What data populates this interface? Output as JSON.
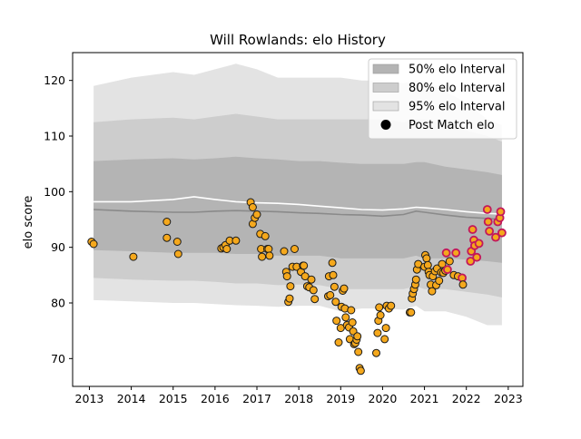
{
  "chart_data": {
    "type": "line",
    "title": "Will Rowlands: elo History",
    "xlabel": "",
    "ylabel": "elo score",
    "xlim": [
      2012.6,
      2023.35
    ],
    "ylim": [
      65,
      125
    ],
    "x_ticks": [
      2013,
      2014,
      2015,
      2016,
      2017,
      2018,
      2019,
      2020,
      2021,
      2022,
      2023
    ],
    "y_ticks": [
      70,
      80,
      90,
      100,
      110,
      120
    ],
    "legend_position": "upper-right",
    "legend": [
      {
        "label": "50% elo Interval",
        "kind": "band50"
      },
      {
        "label": "80% elo Interval",
        "kind": "band80"
      },
      {
        "label": "95% elo Interval",
        "kind": "band95"
      },
      {
        "label": "Post Match elo",
        "kind": "marker"
      }
    ],
    "colors": {
      "band95": "#e3e3e3",
      "band80": "#cdcdcd",
      "band50": "#b4b4b4",
      "median_line": "#8a8a8a",
      "mean_line": "#ffffff",
      "marker_fill": "#f5a81c",
      "marker_edge": "#1a1a1a",
      "recent_marker_edge": "#c2185b"
    },
    "band_x": [
      2013.1,
      2014.0,
      2015.0,
      2015.5,
      2016.0,
      2016.5,
      2017.0,
      2017.5,
      2018.0,
      2018.5,
      2019.0,
      2019.5,
      2020.0,
      2020.5,
      2020.8,
      2021.0,
      2021.5,
      2022.0,
      2022.5,
      2022.85
    ],
    "band95_upper": [
      119,
      120.5,
      121.5,
      121,
      122,
      123,
      122,
      120.5,
      120.5,
      120.5,
      120.5,
      120,
      120,
      119.5,
      120,
      120,
      118,
      116,
      113,
      112
    ],
    "band95_lower": [
      80.5,
      80.3,
      80,
      80,
      79.8,
      79.6,
      79.5,
      79.3,
      79.5,
      79.5,
      78.5,
      79,
      79,
      78.8,
      79.5,
      78.5,
      78.5,
      77.5,
      76,
      76
    ],
    "band80_upper": [
      112.5,
      113,
      113.3,
      113,
      113.5,
      114,
      113.5,
      113,
      113,
      113,
      113,
      113,
      113,
      112.5,
      113,
      113,
      112,
      111,
      110,
      109
    ],
    "band80_lower": [
      84.5,
      84.2,
      84,
      84,
      83.8,
      83.5,
      83.5,
      83.2,
      83.3,
      83.2,
      82.5,
      82.5,
      82.5,
      82.5,
      83,
      82.5,
      82.5,
      82,
      81.5,
      81
    ],
    "band50_upper": [
      105.5,
      105.8,
      106,
      105.8,
      106,
      106.3,
      106,
      105.8,
      105.5,
      105.5,
      105.2,
      105,
      105,
      105,
      105.3,
      105.3,
      104.5,
      104,
      103.5,
      103
    ],
    "band50_lower": [
      89.5,
      89.3,
      89,
      89,
      89,
      88.8,
      88.8,
      88.5,
      88.5,
      88.5,
      88,
      88,
      88,
      88,
      88.5,
      88,
      88,
      87.8,
      87.5,
      87.2
    ],
    "median": [
      96.8,
      96.5,
      96.3,
      96.3,
      96.5,
      96.6,
      96.5,
      96.4,
      96.2,
      96.1,
      95.9,
      95.8,
      95.6,
      95.9,
      96.5,
      96.3,
      95.8,
      95.4,
      95.2,
      95.0
    ],
    "mean": [
      98.2,
      98.2,
      98.6,
      99.1,
      98.6,
      98.2,
      98.0,
      97.9,
      97.7,
      97.4,
      97.1,
      96.8,
      96.7,
      96.9,
      97.2,
      97.1,
      96.8,
      96.4,
      96.1,
      96.0
    ],
    "post_match": [
      {
        "x": 2013.05,
        "y": 91.0
      },
      {
        "x": 2013.1,
        "y": 90.6
      },
      {
        "x": 2014.05,
        "y": 88.3
      },
      {
        "x": 2014.85,
        "y": 94.6
      },
      {
        "x": 2014.85,
        "y": 91.7
      },
      {
        "x": 2015.1,
        "y": 91.0
      },
      {
        "x": 2015.12,
        "y": 88.8
      },
      {
        "x": 2016.15,
        "y": 89.8
      },
      {
        "x": 2016.2,
        "y": 90.0
      },
      {
        "x": 2016.25,
        "y": 90.4
      },
      {
        "x": 2016.35,
        "y": 91.2
      },
      {
        "x": 2016.5,
        "y": 91.2
      },
      {
        "x": 2016.28,
        "y": 89.7
      },
      {
        "x": 2016.85,
        "y": 98.1
      },
      {
        "x": 2016.9,
        "y": 97.2
      },
      {
        "x": 2016.9,
        "y": 94.2
      },
      {
        "x": 2016.95,
        "y": 95.3
      },
      {
        "x": 2017.0,
        "y": 95.9
      },
      {
        "x": 2017.08,
        "y": 92.4
      },
      {
        "x": 2017.1,
        "y": 89.7
      },
      {
        "x": 2017.12,
        "y": 88.3
      },
      {
        "x": 2017.2,
        "y": 92.0
      },
      {
        "x": 2017.25,
        "y": 89.7
      },
      {
        "x": 2017.28,
        "y": 89.7
      },
      {
        "x": 2017.3,
        "y": 88.5
      },
      {
        "x": 2017.65,
        "y": 89.3
      },
      {
        "x": 2017.7,
        "y": 85.6
      },
      {
        "x": 2017.72,
        "y": 84.8
      },
      {
        "x": 2017.75,
        "y": 80.2
      },
      {
        "x": 2017.78,
        "y": 80.8
      },
      {
        "x": 2017.8,
        "y": 83.0
      },
      {
        "x": 2017.85,
        "y": 86.5
      },
      {
        "x": 2017.9,
        "y": 89.7
      },
      {
        "x": 2017.95,
        "y": 86.5
      },
      {
        "x": 2018.05,
        "y": 85.6
      },
      {
        "x": 2018.1,
        "y": 86.7
      },
      {
        "x": 2018.12,
        "y": 86.7
      },
      {
        "x": 2018.15,
        "y": 84.8
      },
      {
        "x": 2018.2,
        "y": 83.0
      },
      {
        "x": 2018.25,
        "y": 82.8
      },
      {
        "x": 2018.3,
        "y": 84.2
      },
      {
        "x": 2018.35,
        "y": 82.3
      },
      {
        "x": 2018.38,
        "y": 80.7
      },
      {
        "x": 2018.7,
        "y": 81.2
      },
      {
        "x": 2018.72,
        "y": 84.8
      },
      {
        "x": 2018.75,
        "y": 81.4
      },
      {
        "x": 2018.8,
        "y": 87.2
      },
      {
        "x": 2018.82,
        "y": 85.0
      },
      {
        "x": 2018.85,
        "y": 82.9
      },
      {
        "x": 2018.88,
        "y": 80.2
      },
      {
        "x": 2018.9,
        "y": 76.8
      },
      {
        "x": 2018.95,
        "y": 72.9
      },
      {
        "x": 2019.0,
        "y": 75.5
      },
      {
        "x": 2019.02,
        "y": 79.3
      },
      {
        "x": 2019.05,
        "y": 82.2
      },
      {
        "x": 2019.08,
        "y": 82.6
      },
      {
        "x": 2019.1,
        "y": 79.0
      },
      {
        "x": 2019.12,
        "y": 77.4
      },
      {
        "x": 2019.15,
        "y": 76.0
      },
      {
        "x": 2019.2,
        "y": 75.6
      },
      {
        "x": 2019.22,
        "y": 73.5
      },
      {
        "x": 2019.25,
        "y": 78.7
      },
      {
        "x": 2019.28,
        "y": 76.5
      },
      {
        "x": 2019.3,
        "y": 74.9
      },
      {
        "x": 2019.32,
        "y": 72.6
      },
      {
        "x": 2019.35,
        "y": 72.8
      },
      {
        "x": 2019.38,
        "y": 73.4
      },
      {
        "x": 2019.4,
        "y": 74.0
      },
      {
        "x": 2019.42,
        "y": 71.2
      },
      {
        "x": 2019.45,
        "y": 68.3
      },
      {
        "x": 2019.48,
        "y": 67.8
      },
      {
        "x": 2019.85,
        "y": 71.0
      },
      {
        "x": 2019.88,
        "y": 74.6
      },
      {
        "x": 2019.9,
        "y": 76.8
      },
      {
        "x": 2019.92,
        "y": 79.2
      },
      {
        "x": 2019.95,
        "y": 77.8
      },
      {
        "x": 2020.05,
        "y": 73.5
      },
      {
        "x": 2020.08,
        "y": 75.5
      },
      {
        "x": 2020.1,
        "y": 79.5
      },
      {
        "x": 2020.15,
        "y": 79.0
      },
      {
        "x": 2020.2,
        "y": 79.5
      },
      {
        "x": 2020.65,
        "y": 78.3
      },
      {
        "x": 2020.68,
        "y": 78.3
      },
      {
        "x": 2020.7,
        "y": 80.8
      },
      {
        "x": 2020.72,
        "y": 81.7
      },
      {
        "x": 2020.75,
        "y": 82.5
      },
      {
        "x": 2020.78,
        "y": 83.3
      },
      {
        "x": 2020.8,
        "y": 84.2
      },
      {
        "x": 2020.82,
        "y": 86.0
      },
      {
        "x": 2020.85,
        "y": 87.0
      },
      {
        "x": 2021.0,
        "y": 86.5
      },
      {
        "x": 2021.02,
        "y": 88.6
      },
      {
        "x": 2021.05,
        "y": 88.0
      },
      {
        "x": 2021.08,
        "y": 86.8
      },
      {
        "x": 2021.1,
        "y": 85.6
      },
      {
        "x": 2021.12,
        "y": 85.0
      },
      {
        "x": 2021.15,
        "y": 83.3
      },
      {
        "x": 2021.18,
        "y": 82.1
      },
      {
        "x": 2021.2,
        "y": 84.8
      },
      {
        "x": 2021.25,
        "y": 85.7
      },
      {
        "x": 2021.28,
        "y": 83.2
      },
      {
        "x": 2021.3,
        "y": 86.2
      },
      {
        "x": 2021.35,
        "y": 84.0
      },
      {
        "x": 2021.4,
        "y": 85.5
      },
      {
        "x": 2021.42,
        "y": 87.0
      },
      {
        "x": 2021.45,
        "y": 85.4
      },
      {
        "x": 2021.5,
        "y": 85.8
      },
      {
        "x": 2021.52,
        "y": 89.0,
        "recent": true
      },
      {
        "x": 2021.55,
        "y": 86.0,
        "recent": true
      },
      {
        "x": 2021.6,
        "y": 87.5
      },
      {
        "x": 2021.7,
        "y": 85.0
      },
      {
        "x": 2021.75,
        "y": 89.0,
        "recent": true
      },
      {
        "x": 2021.8,
        "y": 84.8
      },
      {
        "x": 2021.9,
        "y": 84.5,
        "recent": true
      },
      {
        "x": 2021.92,
        "y": 83.3
      },
      {
        "x": 2022.1,
        "y": 87.5,
        "recent": true
      },
      {
        "x": 2022.12,
        "y": 89.3,
        "recent": true
      },
      {
        "x": 2022.15,
        "y": 93.2,
        "recent": true
      },
      {
        "x": 2022.18,
        "y": 91.3,
        "recent": true
      },
      {
        "x": 2022.2,
        "y": 90.3,
        "recent": true
      },
      {
        "x": 2022.25,
        "y": 88.2,
        "recent": true
      },
      {
        "x": 2022.3,
        "y": 90.7,
        "recent": true
      },
      {
        "x": 2022.5,
        "y": 96.8,
        "recent": true
      },
      {
        "x": 2022.52,
        "y": 94.6,
        "recent": true
      },
      {
        "x": 2022.55,
        "y": 92.9,
        "recent": true
      },
      {
        "x": 2022.7,
        "y": 91.8,
        "recent": true
      },
      {
        "x": 2022.75,
        "y": 94.6,
        "recent": true
      },
      {
        "x": 2022.8,
        "y": 95.3,
        "recent": true
      },
      {
        "x": 2022.82,
        "y": 96.4,
        "recent": true
      },
      {
        "x": 2022.85,
        "y": 92.6,
        "recent": true
      }
    ]
  }
}
